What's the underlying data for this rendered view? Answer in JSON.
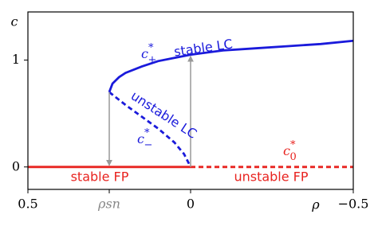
{
  "chart_data": {
    "type": "line",
    "xlabel": "ρ",
    "ylabel": "c",
    "xlim": [
      0.5,
      -0.5
    ],
    "xticks": [
      0.5,
      {
        "value": 0.25,
        "label": "ρsn"
      },
      0,
      {
        "value": -0.5,
        "label": "−0.5"
      }
    ],
    "ylim": [
      -0.21,
      1.45
    ],
    "yticks": [
      0,
      1
    ],
    "series": [
      {
        "name": "stable LC",
        "symbol": {
          "base": "c",
          "sup": "*",
          "sub": "+"
        },
        "color": "#1a1adb",
        "dashed": false,
        "x": [
          0.25,
          0.24,
          0.22,
          0.2,
          0.15,
          0.1,
          0.05,
          0,
          -0.1,
          -0.2,
          -0.3,
          -0.4,
          -0.5
        ],
        "values": [
          0.7,
          0.78,
          0.84,
          0.88,
          0.94,
          0.99,
          1.02,
          1.05,
          1.09,
          1.11,
          1.13,
          1.15,
          1.18
        ]
      },
      {
        "name": "unstable LC",
        "symbol": {
          "base": "c",
          "sup": "*",
          "sub": "−"
        },
        "color": "#1a1adb",
        "dashed": true,
        "x": [
          0.25,
          0.2,
          0.15,
          0.1,
          0.05,
          0.02,
          0
        ],
        "values": [
          0.7,
          0.58,
          0.47,
          0.36,
          0.23,
          0.12,
          0
        ]
      },
      {
        "name": "stable FP",
        "color": "#e8231f",
        "dashed": false,
        "x": [
          0.5,
          0
        ],
        "values": [
          0,
          0
        ]
      },
      {
        "name": "unstable FP",
        "symbol": {
          "base": "c",
          "sup": "*",
          "sub": "0"
        },
        "color": "#e8231f",
        "dashed": true,
        "x": [
          0,
          -0.5
        ],
        "values": [
          0,
          0
        ]
      }
    ]
  }
}
